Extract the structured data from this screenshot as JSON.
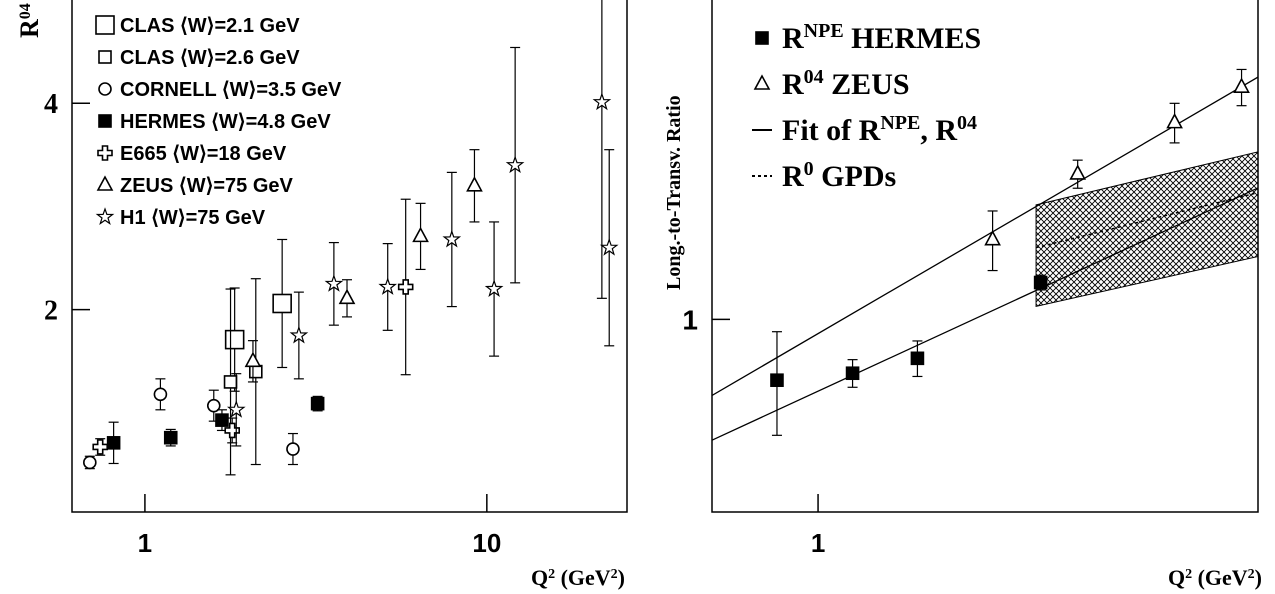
{
  "chart_data": [
    {
      "type": "scatter",
      "log_x": true,
      "xlim": [
        0.612,
        25.7
      ],
      "ylim": [
        0.04,
        5.0
      ],
      "xticks": [
        1,
        10
      ],
      "yticks": [
        2,
        4
      ],
      "x_label": [
        "Q",
        "2",
        " (GeV",
        "2",
        ")"
      ],
      "y_label": [
        "R",
        "04"
      ],
      "series": [
        {
          "name": "CLAS ⟨W⟩=2.1 GeV",
          "marker": "big-square",
          "x": [
            1.83,
            2.52
          ],
          "values": [
            1.71,
            2.06
          ],
          "errors": [
            0.5,
            0.62
          ]
        },
        {
          "name": "CLAS ⟨W⟩=2.6 GeV",
          "marker": "square",
          "x": [
            1.78,
            2.11
          ],
          "values": [
            1.3,
            1.4
          ],
          "errors": [
            0.9,
            0.9
          ]
        },
        {
          "name": "CORNELL ⟨W⟩=3.5 GeV",
          "marker": "circle",
          "x": [
            0.69,
            1.11,
            1.59,
            2.71
          ],
          "values": [
            0.52,
            1.18,
            1.07,
            0.65
          ],
          "errors": [
            0.06,
            0.15,
            0.15,
            0.15
          ]
        },
        {
          "name": "HERMES ⟨W⟩=4.8 GeV",
          "marker": "filled-square",
          "x": [
            0.81,
            1.19,
            1.68,
            3.2
          ],
          "values": [
            0.71,
            0.76,
            0.93,
            1.09
          ],
          "errors": [
            0.2,
            0.08,
            0.1,
            0.07
          ]
        },
        {
          "name": "E665 ⟨W⟩=18 GeV",
          "marker": "cross",
          "x": [
            0.74,
            1.8,
            5.79
          ],
          "values": [
            0.67,
            0.83,
            2.22
          ],
          "errors": [
            0.08,
            0.12,
            0.85
          ]
        },
        {
          "name": "ZEUS ⟨W⟩=75 GeV",
          "marker": "triangle",
          "x": [
            2.07,
            3.9,
            6.4,
            9.2
          ],
          "values": [
            1.5,
            2.11,
            2.71,
            3.2
          ],
          "errors": [
            0.2,
            0.18,
            0.32,
            0.35
          ]
        },
        {
          "name": "H1 ⟨W⟩=75 GeV",
          "marker": "star",
          "x": [
            1.85,
            2.82,
            3.57,
            5.13,
            7.9,
            10.5,
            12.1,
            21.7,
            22.8
          ],
          "values": [
            1.03,
            1.75,
            2.25,
            2.22,
            2.68,
            2.2,
            3.4,
            4.01,
            2.6
          ],
          "errors": [
            0.35,
            0.42,
            0.4,
            0.42,
            0.65,
            0.65,
            1.14,
            1.9,
            0.95
          ]
        }
      ]
    },
    {
      "type": "scatter",
      "log_x": true,
      "log_y": true,
      "xlim": [
        0.586,
        9.18
      ],
      "ylim": [
        0.62,
        2.21
      ],
      "xticks": [
        1
      ],
      "yticks": [
        1
      ],
      "x_label": [
        "Q",
        "2",
        " (GeV",
        "2",
        ")"
      ],
      "y_label": [
        "Long.-to-Transv. Ratio"
      ],
      "series": [
        {
          "marker": "filled-square",
          "x": [
            0.813,
            1.19,
            1.65,
            3.07
          ],
          "values": [
            0.86,
            0.875,
            0.908,
            1.096
          ],
          "errors": [
            0.11,
            0.03,
            0.04,
            0.02
          ]
        },
        {
          "marker": "triangle",
          "x": [
            2.41,
            3.7,
            6.03,
            8.45
          ],
          "values": [
            1.219,
            1.435,
            1.63,
            1.78
          ],
          "errors": [
            0.09,
            0.05,
            0.08,
            0.08
          ]
        }
      ],
      "fit_lines": [
        {
          "x": [
            0.586,
            9.18
          ],
          "values": [
            0.828,
            1.825
          ]
        },
        {
          "x": [
            0.586,
            9.18
          ],
          "values": [
            0.741,
            1.386
          ]
        }
      ],
      "band": {
        "x": [
          3.0,
          9.18
        ],
        "upper": [
          1.329,
          1.516
        ],
        "lower": [
          1.033,
          1.169
        ]
      },
      "gpd_line": {
        "x": [
          3.0,
          9.18
        ],
        "values": [
          1.195,
          1.37
        ]
      },
      "legend": [
        {
          "marker": "filled-square",
          "parts": [
            "R",
            "NPE",
            " HERMES"
          ]
        },
        {
          "marker": "triangle",
          "parts": [
            "R",
            "04",
            "   ZEUS"
          ]
        },
        {
          "marker": "line",
          "parts": [
            "Fit of R",
            "NPE",
            ", R",
            "04"
          ]
        },
        {
          "marker": "dotted",
          "parts": [
            "R",
            "0",
            " GPDs"
          ]
        }
      ]
    }
  ]
}
